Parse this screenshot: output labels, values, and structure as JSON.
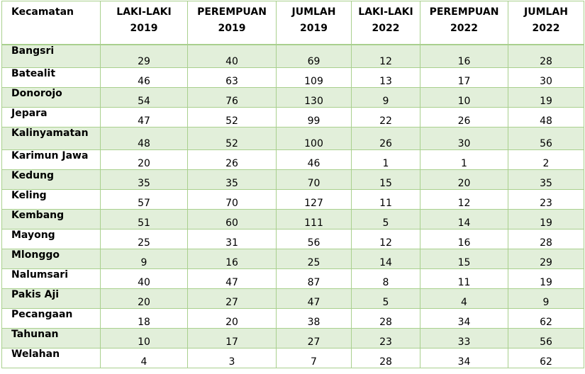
{
  "table": {
    "headers": [
      {
        "line1": "Kecamatan",
        "line2": ""
      },
      {
        "line1": "LAKI-LAKI",
        "line2": "2019"
      },
      {
        "line1": "PEREMPUAN",
        "line2": "2019"
      },
      {
        "line1": "JUMLAH",
        "line2": "2019"
      },
      {
        "line1": "LAKI-LAKI",
        "line2": "2022"
      },
      {
        "line1": "PEREMPUAN",
        "line2": "2022"
      },
      {
        "line1": "JUMLAH",
        "line2": "2022"
      }
    ],
    "rows": [
      [
        "Bangsri",
        "29",
        "40",
        "69",
        "12",
        "16",
        "28"
      ],
      [
        "Batealit",
        "46",
        "63",
        "109",
        "13",
        "17",
        "30"
      ],
      [
        "Donorojo",
        "54",
        "76",
        "130",
        "9",
        "10",
        "19"
      ],
      [
        "Jepara",
        "47",
        "52",
        "99",
        "22",
        "26",
        "48"
      ],
      [
        "Kalinyamatan",
        "48",
        "52",
        "100",
        "26",
        "30",
        "56"
      ],
      [
        "Karimun Jawa",
        "20",
        "26",
        "46",
        "1",
        "1",
        "2"
      ],
      [
        "Kedung",
        "35",
        "35",
        "70",
        "15",
        "20",
        "35"
      ],
      [
        "Keling",
        "57",
        "70",
        "127",
        "11",
        "12",
        "23"
      ],
      [
        "Kembang",
        "51",
        "60",
        "111",
        "5",
        "14",
        "19"
      ],
      [
        "Mayong",
        "25",
        "31",
        "56",
        "12",
        "16",
        "28"
      ],
      [
        "Mlonggo",
        "9",
        "16",
        "25",
        "14",
        "15",
        "29"
      ],
      [
        "Nalumsari",
        "40",
        "47",
        "87",
        "8",
        "11",
        "19"
      ],
      [
        "Pakis Aji",
        "20",
        "27",
        "47",
        "5",
        "4",
        "9"
      ],
      [
        "Pecangaan",
        "18",
        "20",
        "38",
        "28",
        "34",
        "62"
      ],
      [
        "Tahunan",
        "10",
        "17",
        "27",
        "23",
        "33",
        "56"
      ],
      [
        "Welahan",
        "4",
        "3",
        "7",
        "28",
        "34",
        "62"
      ]
    ]
  },
  "colors": {
    "stripe": "#e2efda",
    "border": "#a9d08e"
  }
}
